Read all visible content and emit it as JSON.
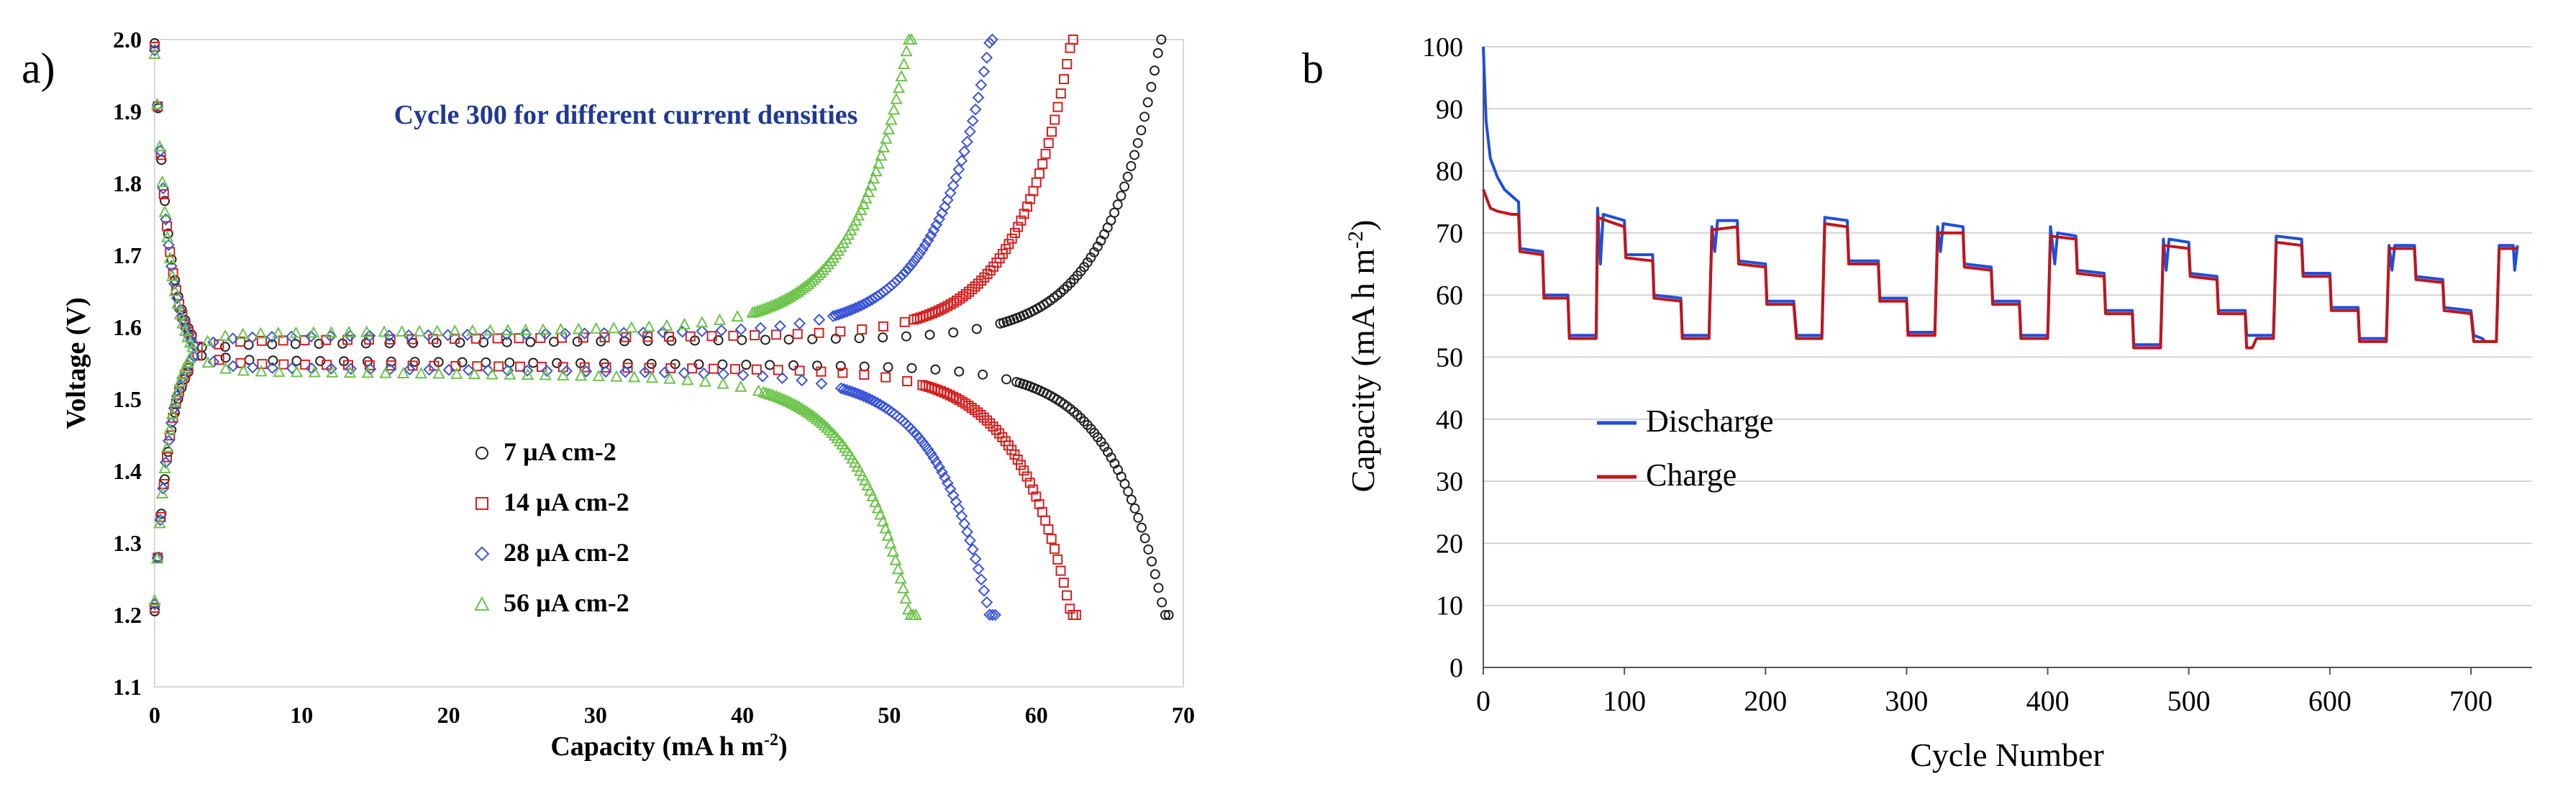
{
  "panel_labels": [
    "a)",
    "b"
  ],
  "colors": {
    "black_series": "#222222",
    "red_series": "#d42020",
    "blue_series": "#3a55d6",
    "green_series": "#6cc44a",
    "title_blue": "#1f3a93",
    "discharge_line": "#1f4fd8",
    "charge_line": "#c0161c",
    "axis": "#555555",
    "gridline": "#c8c8c8"
  },
  "chart_data": [
    {
      "id": "a",
      "type": "scatter",
      "title": "Cycle 300 for different current densities",
      "xlabel": "Capacity (mA h m",
      "xlabel_sup": "-2",
      "xlabel_close": ")",
      "ylabel": "Voltage (V)",
      "xlim": [
        0,
        70
      ],
      "ylim": [
        1.1,
        2.0
      ],
      "xticks": [
        0,
        10,
        20,
        30,
        40,
        50,
        60,
        70
      ],
      "yticks": [
        1.1,
        1.2,
        1.3,
        1.4,
        1.5,
        1.6,
        1.7,
        1.8,
        1.9,
        2.0
      ],
      "grid": false,
      "legend_position": "center-right",
      "series": [
        {
          "name": "7 µA cm-2",
          "marker": "circle",
          "color_key": "black_series",
          "charge_end": 68.5,
          "discharge_end": 69.0,
          "plateau_charge": 1.575,
          "plateau_discharge": 1.555
        },
        {
          "name": "14 µA cm-2",
          "marker": "square",
          "color_key": "red_series",
          "charge_end": 62.5,
          "discharge_end": 62.7,
          "plateau_charge": 1.58,
          "plateau_discharge": 1.55
        },
        {
          "name": "28 µA cm-2",
          "marker": "diamond",
          "color_key": "blue_series",
          "charge_end": 57.0,
          "discharge_end": 57.2,
          "plateau_charge": 1.585,
          "plateau_discharge": 1.545
        },
        {
          "name": "56 µA cm-2",
          "marker": "triangle",
          "color_key": "green_series",
          "charge_end": 51.5,
          "discharge_end": 51.8,
          "plateau_charge": 1.59,
          "plateau_discharge": 1.54
        }
      ]
    },
    {
      "id": "b",
      "type": "line",
      "xlabel": "Cycle Number",
      "ylabel": "Capacity (mA h m",
      "ylabel_sup": "-2",
      "ylabel_close": ")",
      "xlim": [
        0,
        740
      ],
      "ylim": [
        0,
        100
      ],
      "xticks": [
        0,
        100,
        200,
        300,
        400,
        500,
        600,
        700
      ],
      "yticks": [
        0,
        10,
        20,
        30,
        40,
        50,
        60,
        70,
        80,
        90,
        100
      ],
      "grid": true,
      "legend_position": "center-left",
      "series": [
        {
          "name": "Discharge",
          "color_key": "discharge_line",
          "points": [
            [
              0,
              100
            ],
            [
              2,
              88
            ],
            [
              5,
              82
            ],
            [
              10,
              79
            ],
            [
              15,
              77
            ],
            [
              20,
              76
            ],
            [
              25,
              75
            ],
            [
              26,
              67.5
            ],
            [
              42,
              67
            ],
            [
              43,
              60
            ],
            [
              60,
              60
            ],
            [
              61,
              53.5
            ],
            [
              80,
              53.5
            ],
            [
              81,
              74
            ],
            [
              83,
              65
            ],
            [
              85,
              73
            ],
            [
              100,
              72
            ],
            [
              101,
              66.5
            ],
            [
              120,
              66.5
            ],
            [
              121,
              60
            ],
            [
              140,
              59.5
            ],
            [
              141,
              53.5
            ],
            [
              160,
              53.5
            ],
            [
              162,
              71
            ],
            [
              164,
              67
            ],
            [
              166,
              72
            ],
            [
              180,
              72
            ],
            [
              181,
              65.5
            ],
            [
              200,
              65
            ],
            [
              201,
              59
            ],
            [
              220,
              59
            ],
            [
              222,
              53.5
            ],
            [
              240,
              53.5
            ],
            [
              242,
              72.5
            ],
            [
              258,
              72
            ],
            [
              259,
              65.5
            ],
            [
              280,
              65.5
            ],
            [
              281,
              59.5
            ],
            [
              300,
              59.5
            ],
            [
              301,
              54
            ],
            [
              320,
              54
            ],
            [
              322,
              71
            ],
            [
              324,
              67
            ],
            [
              326,
              71.5
            ],
            [
              340,
              71
            ],
            [
              341,
              65
            ],
            [
              360,
              64.5
            ],
            [
              361,
              59
            ],
            [
              380,
              59
            ],
            [
              381,
              53.5
            ],
            [
              400,
              53.5
            ],
            [
              402,
              71
            ],
            [
              405,
              65
            ],
            [
              407,
              70
            ],
            [
              420,
              69.5
            ],
            [
              421,
              64
            ],
            [
              440,
              63.5
            ],
            [
              441,
              57.5
            ],
            [
              460,
              57.5
            ],
            [
              461,
              52
            ],
            [
              480,
              52
            ],
            [
              482,
              69
            ],
            [
              484,
              64
            ],
            [
              486,
              69
            ],
            [
              500,
              68.5
            ],
            [
              501,
              63.5
            ],
            [
              520,
              63
            ],
            [
              521,
              57.5
            ],
            [
              540,
              57.5
            ],
            [
              541,
              53.5
            ],
            [
              560,
              53.5
            ],
            [
              562,
              69.5
            ],
            [
              580,
              69
            ],
            [
              581,
              63.5
            ],
            [
              600,
              63.5
            ],
            [
              601,
              58
            ],
            [
              620,
              58
            ],
            [
              621,
              53
            ],
            [
              640,
              53
            ],
            [
              642,
              68
            ],
            [
              644,
              64
            ],
            [
              646,
              68
            ],
            [
              660,
              68
            ],
            [
              661,
              63
            ],
            [
              680,
              62.5
            ],
            [
              681,
              58
            ],
            [
              700,
              57.5
            ],
            [
              702,
              53.5
            ],
            [
              708,
              53
            ],
            [
              710,
              52.5
            ],
            [
              718,
              52.5
            ],
            [
              720,
              68
            ],
            [
              730,
              68
            ],
            [
              731,
              64
            ],
            [
              733,
              68
            ]
          ]
        },
        {
          "name": "Charge",
          "color_key": "charge_line",
          "points": [
            [
              0,
              77
            ],
            [
              5,
              74
            ],
            [
              10,
              73.5
            ],
            [
              20,
              73
            ],
            [
              25,
              73
            ],
            [
              26,
              67
            ],
            [
              42,
              66.5
            ],
            [
              43,
              59.5
            ],
            [
              60,
              59.5
            ],
            [
              61,
              53
            ],
            [
              80,
              53
            ],
            [
              81,
              72.5
            ],
            [
              100,
              71
            ],
            [
              101,
              66
            ],
            [
              120,
              65.5
            ],
            [
              121,
              59.5
            ],
            [
              140,
              59
            ],
            [
              141,
              53
            ],
            [
              160,
              53
            ],
            [
              162,
              70.5
            ],
            [
              180,
              71
            ],
            [
              181,
              65
            ],
            [
              200,
              64.5
            ],
            [
              201,
              58.5
            ],
            [
              220,
              58.5
            ],
            [
              222,
              53
            ],
            [
              240,
              53
            ],
            [
              242,
              71.5
            ],
            [
              258,
              71
            ],
            [
              259,
              65
            ],
            [
              280,
              65
            ],
            [
              281,
              59
            ],
            [
              300,
              59
            ],
            [
              301,
              53.5
            ],
            [
              320,
              53.5
            ],
            [
              322,
              70
            ],
            [
              340,
              70
            ],
            [
              341,
              64.5
            ],
            [
              360,
              64
            ],
            [
              361,
              58.5
            ],
            [
              380,
              58.5
            ],
            [
              381,
              53
            ],
            [
              400,
              53
            ],
            [
              402,
              69.5
            ],
            [
              420,
              69
            ],
            [
              421,
              63.5
            ],
            [
              440,
              63
            ],
            [
              441,
              57
            ],
            [
              460,
              57
            ],
            [
              461,
              51.5
            ],
            [
              480,
              51.5
            ],
            [
              482,
              68
            ],
            [
              500,
              67.5
            ],
            [
              501,
              63
            ],
            [
              520,
              62.5
            ],
            [
              521,
              57
            ],
            [
              540,
              57
            ],
            [
              541,
              51.5
            ],
            [
              545,
              51.5
            ],
            [
              548,
              53
            ],
            [
              560,
              53
            ],
            [
              562,
              68.5
            ],
            [
              580,
              68
            ],
            [
              581,
              63
            ],
            [
              600,
              63
            ],
            [
              601,
              57.5
            ],
            [
              620,
              57.5
            ],
            [
              621,
              52.5
            ],
            [
              640,
              52.5
            ],
            [
              642,
              67.5
            ],
            [
              660,
              67.5
            ],
            [
              661,
              62.5
            ],
            [
              680,
              62
            ],
            [
              681,
              57.5
            ],
            [
              700,
              57
            ],
            [
              702,
              52.5
            ],
            [
              718,
              52.5
            ],
            [
              720,
              67.5
            ],
            [
              733,
              67.5
            ]
          ]
        }
      ]
    }
  ]
}
